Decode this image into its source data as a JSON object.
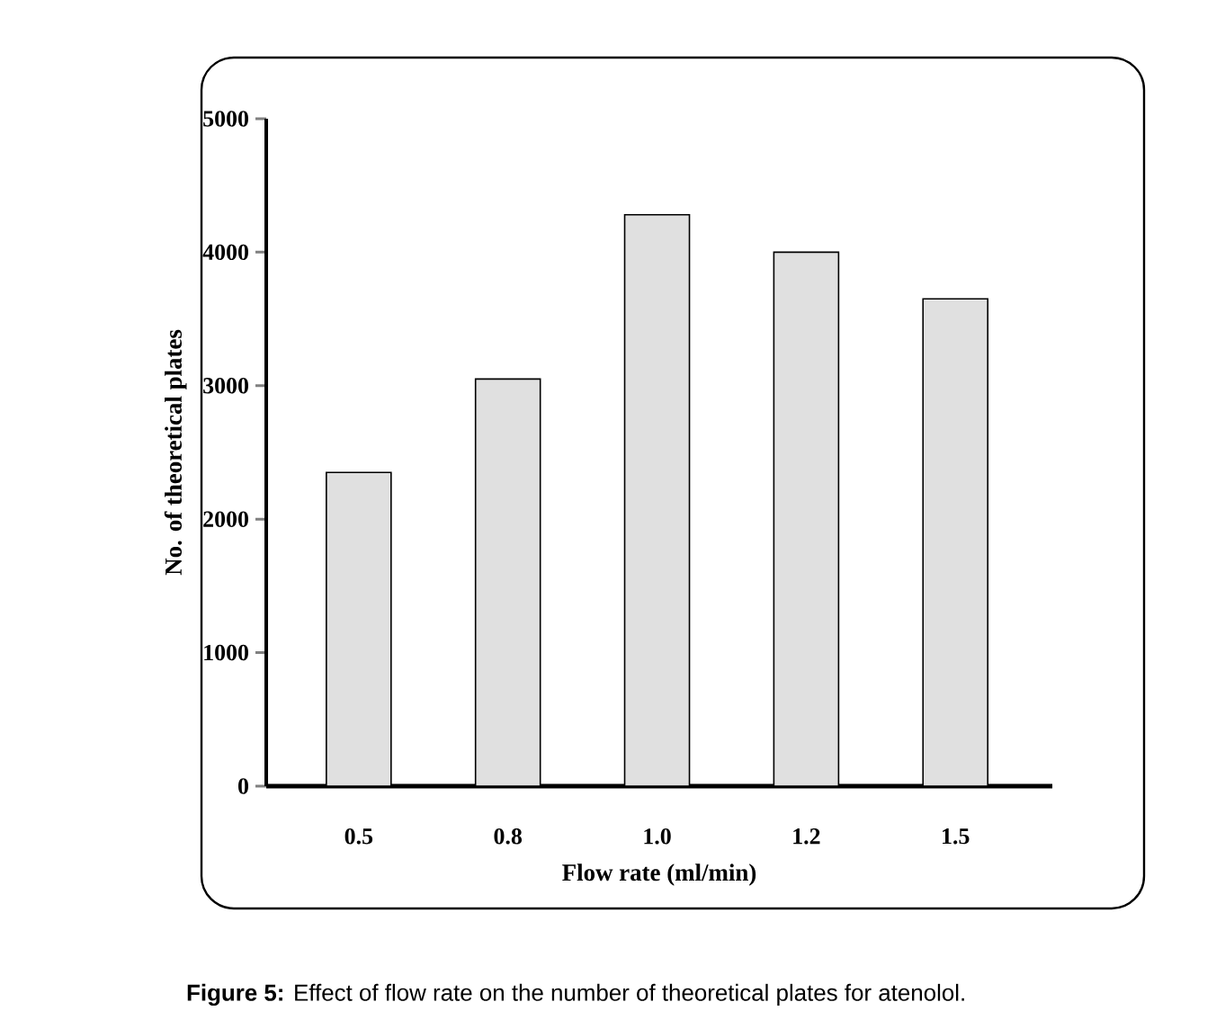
{
  "chart_data": {
    "type": "bar",
    "xlabel": "Flow rate (ml/min)",
    "ylabel": "No. of theoretical plates",
    "categories": [
      "0.5",
      "0.8",
      "1.0",
      "1.2",
      "1.5"
    ],
    "values": [
      2350,
      3050,
      4280,
      4000,
      3650
    ],
    "color": "#e0e0e0",
    "ylim": [
      0,
      5000
    ],
    "yticks": [
      0,
      1000,
      2000,
      3000,
      4000,
      5000
    ],
    "annotations": [
      "**Figure 5:** Effect of flow rate on the number of theoretical plates for atenolol."
    ]
  }
}
